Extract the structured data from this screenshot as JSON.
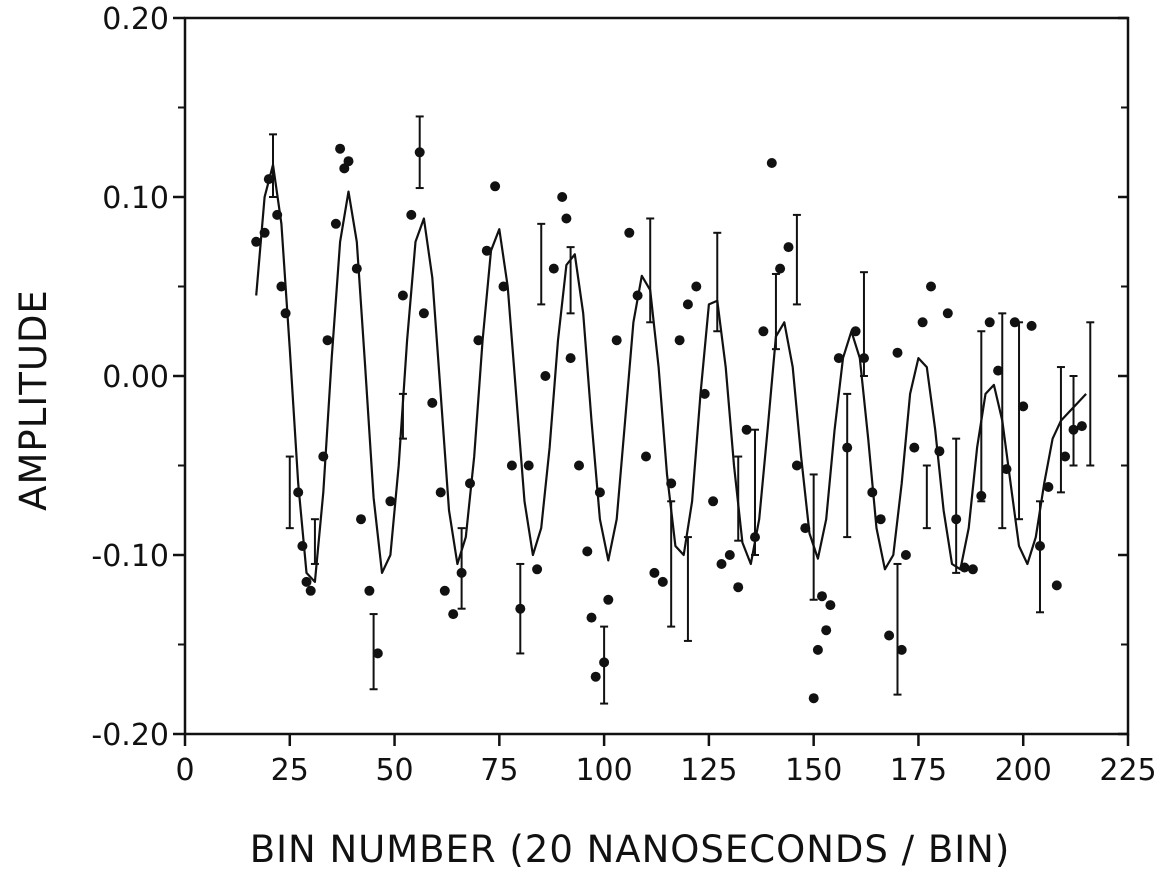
{
  "chart_data": {
    "type": "scatter",
    "title": "",
    "xlabel": "BIN NUMBER (20 NANOSECONDS / BIN)",
    "ylabel": "AMPLITUDE",
    "xlim": [
      0,
      225
    ],
    "ylim": [
      -0.2,
      0.2
    ],
    "x_ticks": [
      0,
      25,
      50,
      75,
      100,
      125,
      150,
      175,
      200,
      225
    ],
    "x_tick_labels": [
      "0",
      "25",
      "50",
      "75",
      "100",
      "125",
      "150",
      "175",
      "200",
      "225"
    ],
    "y_ticks": [
      -0.2,
      -0.1,
      0.0,
      0.1,
      0.2
    ],
    "y_tick_labels": [
      "-0.20",
      "-0.10",
      "0.00",
      "0.10",
      "0.20"
    ],
    "grid": false,
    "legend": "none",
    "colors": {
      "ink": "#111111",
      "background": "#ffffff"
    },
    "series": [
      {
        "style": "filled-markers",
        "x": [
          17,
          19,
          20,
          22,
          23,
          24,
          27,
          28,
          29,
          30,
          33,
          34,
          36,
          37,
          38,
          39,
          41,
          42,
          44,
          46,
          49,
          52,
          54,
          56,
          57,
          59,
          61,
          62,
          64,
          66,
          68,
          70,
          72,
          74,
          76,
          78,
          80,
          82,
          84,
          86,
          88,
          90,
          91,
          92,
          94,
          96,
          97,
          98,
          99,
          100,
          101,
          103,
          106,
          108,
          110,
          112,
          114,
          116,
          118,
          120,
          122,
          124,
          126,
          128,
          130,
          132,
          134,
          136,
          138,
          140,
          142,
          144,
          146,
          148,
          150,
          151,
          152,
          153,
          154,
          156,
          158,
          160,
          162,
          164,
          166,
          168,
          170,
          171,
          172,
          174,
          176,
          178,
          180,
          182,
          184,
          186,
          188,
          190,
          192,
          194,
          196,
          198,
          200,
          202,
          204,
          206,
          208,
          210,
          212,
          214
        ],
        "y": [
          0.075,
          0.08,
          0.11,
          0.09,
          0.05,
          0.035,
          -0.065,
          -0.095,
          -0.115,
          -0.12,
          -0.045,
          0.02,
          0.085,
          0.127,
          0.116,
          0.12,
          0.06,
          -0.08,
          -0.12,
          -0.155,
          -0.07,
          0.045,
          0.09,
          0.125,
          0.035,
          -0.015,
          -0.065,
          -0.12,
          -0.133,
          -0.11,
          -0.06,
          0.02,
          0.07,
          0.106,
          0.05,
          -0.05,
          -0.13,
          -0.05,
          -0.108,
          0.0,
          0.06,
          0.1,
          0.088,
          0.01,
          -0.05,
          -0.098,
          -0.135,
          -0.168,
          -0.065,
          -0.16,
          -0.125,
          0.02,
          0.08,
          0.045,
          -0.045,
          -0.11,
          -0.115,
          -0.06,
          0.02,
          0.04,
          0.05,
          -0.01,
          -0.07,
          -0.105,
          -0.1,
          -0.118,
          -0.03,
          -0.09,
          0.025,
          0.119,
          0.06,
          0.072,
          -0.05,
          -0.085,
          -0.18,
          -0.153,
          -0.123,
          -0.142,
          -0.128,
          0.01,
          -0.04,
          0.025,
          0.01,
          -0.065,
          -0.08,
          -0.145,
          0.013,
          -0.153,
          -0.1,
          -0.04,
          0.03,
          0.05,
          -0.042,
          0.035,
          -0.08,
          -0.107,
          -0.108,
          -0.067,
          0.03,
          0.003,
          -0.052,
          0.03,
          -0.017,
          0.028,
          -0.095,
          -0.062,
          -0.117,
          -0.045,
          -0.03,
          -0.028
        ]
      }
    ],
    "fit_curve": {
      "style": "solid-line",
      "form": "damped-sinusoid",
      "x": [
        17,
        19,
        21,
        23,
        25,
        27,
        29,
        31,
        33,
        35,
        37,
        39,
        41,
        43,
        45,
        47,
        49,
        51,
        53,
        55,
        57,
        59,
        61,
        63,
        65,
        67,
        69,
        71,
        73,
        75,
        77,
        79,
        81,
        83,
        85,
        87,
        89,
        91,
        93,
        95,
        97,
        99,
        101,
        103,
        105,
        107,
        109,
        111,
        113,
        115,
        117,
        119,
        121,
        123,
        125,
        127,
        129,
        131,
        133,
        135,
        137,
        139,
        141,
        143,
        145,
        147,
        149,
        151,
        153,
        155,
        157,
        159,
        161,
        163,
        165,
        167,
        169,
        171,
        173,
        175,
        177,
        179,
        181,
        183,
        185,
        187,
        189,
        191,
        193,
        195,
        197,
        199,
        201,
        203,
        205,
        207,
        209,
        211,
        213,
        215
      ],
      "y": [
        0.045,
        0.1,
        0.118,
        0.085,
        0.015,
        -0.06,
        -0.11,
        -0.115,
        -0.065,
        0.01,
        0.075,
        0.103,
        0.075,
        0.005,
        -0.068,
        -0.11,
        -0.1,
        -0.05,
        0.02,
        0.075,
        0.088,
        0.055,
        -0.01,
        -0.075,
        -0.105,
        -0.09,
        -0.045,
        0.02,
        0.07,
        0.082,
        0.05,
        -0.01,
        -0.07,
        -0.1,
        -0.085,
        -0.04,
        0.02,
        0.062,
        0.068,
        0.035,
        -0.025,
        -0.08,
        -0.103,
        -0.08,
        -0.025,
        0.03,
        0.056,
        0.048,
        0.005,
        -0.055,
        -0.095,
        -0.1,
        -0.07,
        -0.01,
        0.04,
        0.042,
        0.005,
        -0.05,
        -0.093,
        -0.105,
        -0.08,
        -0.03,
        0.022,
        0.03,
        0.005,
        -0.045,
        -0.088,
        -0.102,
        -0.08,
        -0.03,
        0.01,
        0.025,
        0.01,
        -0.035,
        -0.085,
        -0.108,
        -0.1,
        -0.06,
        -0.01,
        0.01,
        0.005,
        -0.03,
        -0.075,
        -0.105,
        -0.108,
        -0.085,
        -0.04,
        -0.01,
        -0.005,
        -0.025,
        -0.06,
        -0.095,
        -0.105,
        -0.09,
        -0.06,
        -0.035,
        -0.025,
        -0.02,
        -0.015,
        -0.01
      ]
    },
    "error_bars": [
      {
        "x": 21,
        "low": 0.1,
        "high": 0.135
      },
      {
        "x": 25,
        "low": -0.085,
        "high": -0.045
      },
      {
        "x": 31,
        "low": -0.105,
        "high": -0.08
      },
      {
        "x": 45,
        "low": -0.175,
        "high": -0.133
      },
      {
        "x": 52,
        "low": -0.035,
        "high": -0.01
      },
      {
        "x": 56,
        "low": 0.105,
        "high": 0.145
      },
      {
        "x": 66,
        "low": -0.13,
        "high": -0.085
      },
      {
        "x": 80,
        "low": -0.155,
        "high": -0.105
      },
      {
        "x": 85,
        "low": 0.04,
        "high": 0.085
      },
      {
        "x": 92,
        "low": 0.035,
        "high": 0.072
      },
      {
        "x": 100,
        "low": -0.183,
        "high": -0.14
      },
      {
        "x": 111,
        "low": 0.03,
        "high": 0.088
      },
      {
        "x": 116,
        "low": -0.14,
        "high": -0.07
      },
      {
        "x": 120,
        "low": -0.148,
        "high": -0.09
      },
      {
        "x": 127,
        "low": 0.025,
        "high": 0.08
      },
      {
        "x": 132,
        "low": -0.092,
        "high": -0.045
      },
      {
        "x": 136,
        "low": -0.1,
        "high": -0.03
      },
      {
        "x": 141,
        "low": 0.015,
        "high": 0.057
      },
      {
        "x": 146,
        "low": 0.04,
        "high": 0.09
      },
      {
        "x": 150,
        "low": -0.125,
        "high": -0.055
      },
      {
        "x": 158,
        "low": -0.09,
        "high": -0.01
      },
      {
        "x": 162,
        "low": 0.0,
        "high": 0.058
      },
      {
        "x": 170,
        "low": -0.178,
        "high": -0.105
      },
      {
        "x": 177,
        "low": -0.085,
        "high": -0.05
      },
      {
        "x": 184,
        "low": -0.11,
        "high": -0.035
      },
      {
        "x": 190,
        "low": -0.07,
        "high": 0.025
      },
      {
        "x": 195,
        "low": -0.085,
        "high": 0.035
      },
      {
        "x": 199,
        "low": -0.08,
        "high": 0.03
      },
      {
        "x": 204,
        "low": -0.132,
        "high": -0.07
      },
      {
        "x": 209,
        "low": -0.065,
        "high": 0.005
      },
      {
        "x": 212,
        "low": -0.05,
        "high": 0.0
      },
      {
        "x": 216,
        "low": -0.05,
        "high": 0.03
      }
    ]
  }
}
